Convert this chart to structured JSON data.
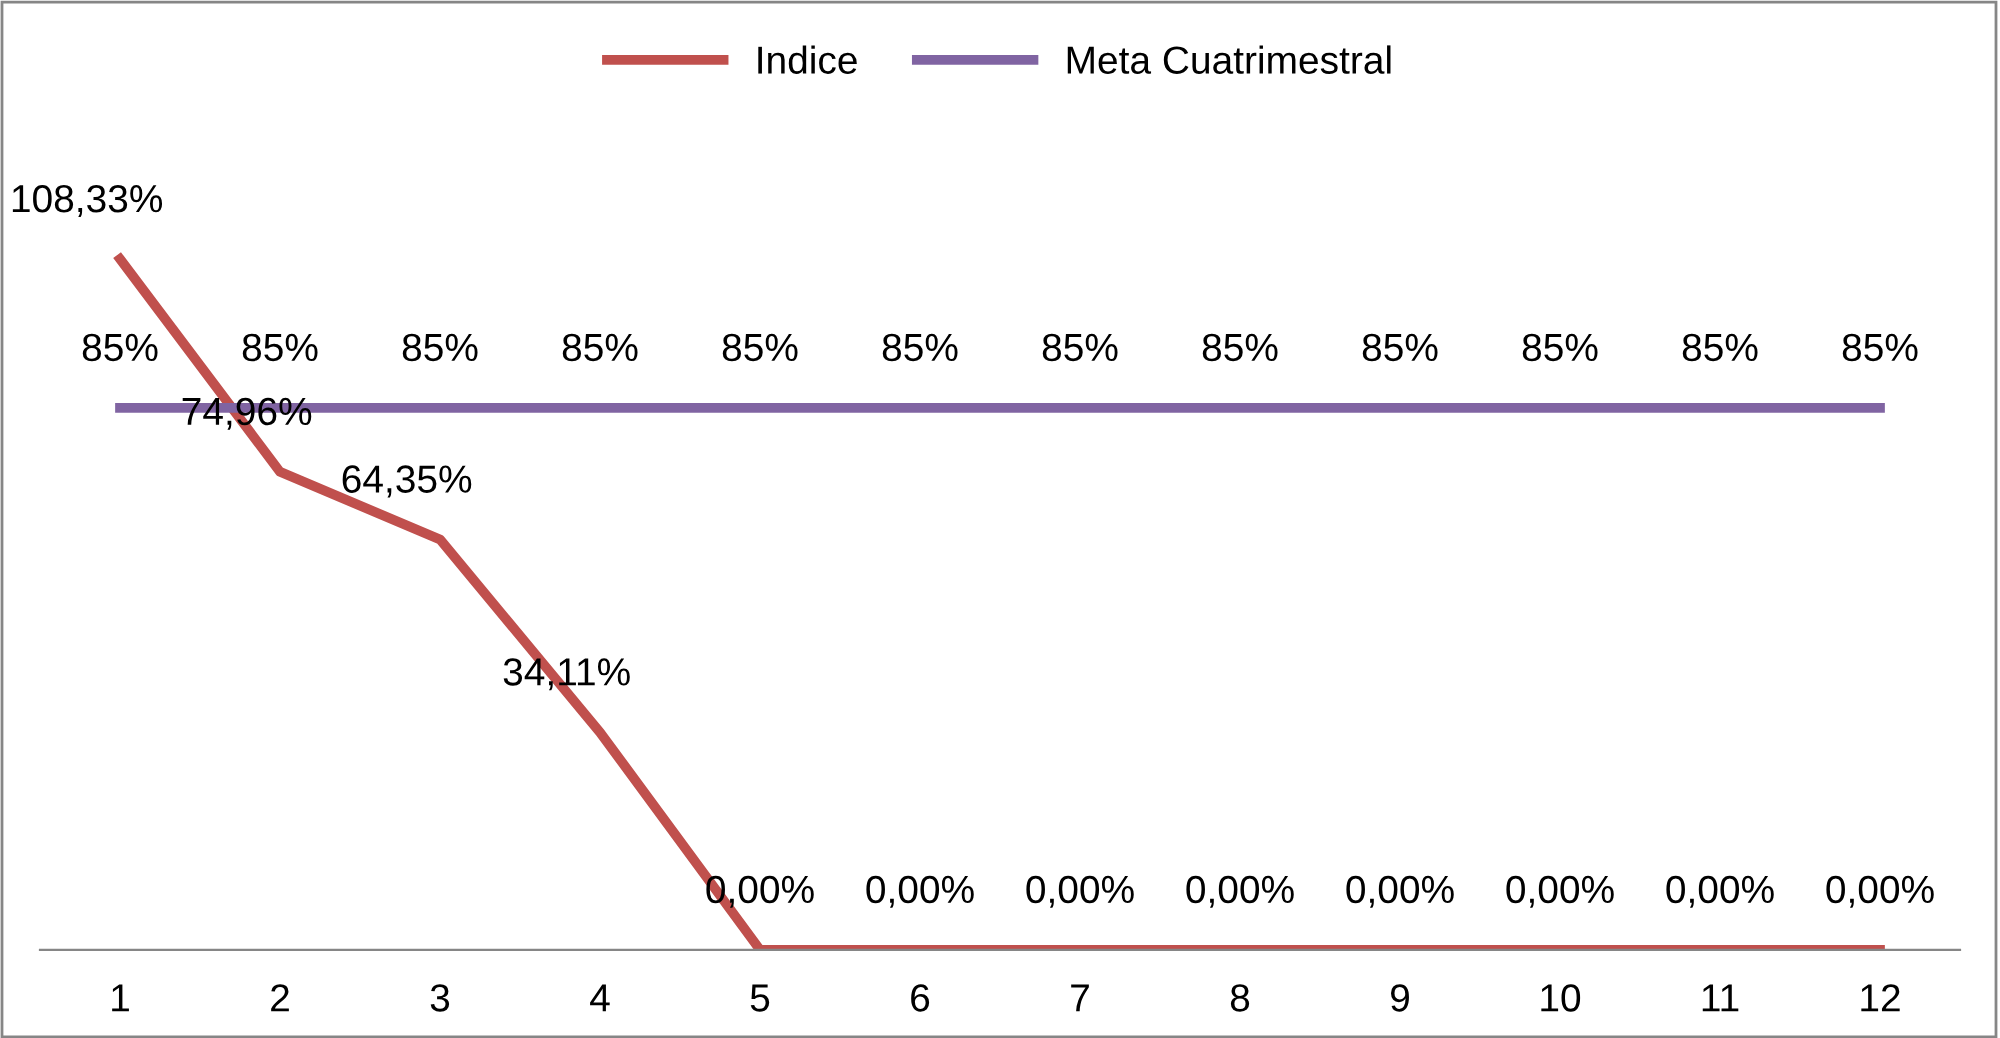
{
  "chart_data": {
    "type": "line",
    "categories": [
      "1",
      "2",
      "3",
      "4",
      "5",
      "6",
      "7",
      "8",
      "9",
      "10",
      "11",
      "12"
    ],
    "series": [
      {
        "name": "Indice",
        "color": "#c0504d",
        "values": [
          108.33,
          74.96,
          64.35,
          34.11,
          0,
          0,
          0,
          0,
          0,
          0,
          0,
          0
        ],
        "value_labels": [
          "108,33%",
          "74,96%",
          "64,35%",
          "34,11%",
          "0,00%",
          "0,00%",
          "0,00%",
          "0,00%",
          "0,00%",
          "0,00%",
          "0,00%",
          "0,00%"
        ]
      },
      {
        "name": "Meta Cuatrimestral",
        "color": "#8064a2",
        "values": [
          85,
          85,
          85,
          85,
          85,
          85,
          85,
          85,
          85,
          85,
          85,
          85
        ],
        "value_labels": [
          "85%",
          "85%",
          "85%",
          "85%",
          "85%",
          "85%",
          "85%",
          "85%",
          "85%",
          "85%",
          "85%",
          "85%"
        ]
      }
    ],
    "legend": "top",
    "grid": false,
    "marker": "none",
    "line_style": "solid"
  }
}
